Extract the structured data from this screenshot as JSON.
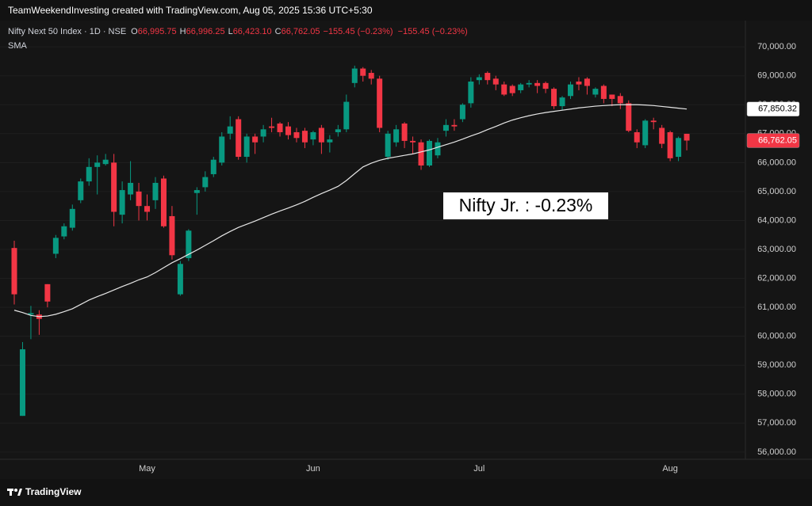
{
  "header": {
    "credit": "TeamWeekendInvesting created with TradingView.com, Aug 05, 2025 15:36 UTC+5:30"
  },
  "footer": {
    "brand": "TradingView"
  },
  "chart_data": {
    "type": "candlestick",
    "categories": [
      null,
      null,
      null,
      null,
      null,
      null,
      null,
      null,
      null,
      null,
      null,
      null,
      null,
      null,
      null,
      null,
      "May",
      null,
      null,
      null,
      null,
      null,
      null,
      null,
      null,
      null,
      null,
      null,
      null,
      null,
      null,
      null,
      null,
      null,
      null,
      null,
      "Jun",
      null,
      null,
      null,
      null,
      null,
      null,
      null,
      null,
      null,
      null,
      null,
      null,
      null,
      null,
      null,
      null,
      null,
      null,
      null,
      "Jul",
      null,
      null,
      null,
      null,
      null,
      null,
      null,
      null,
      null,
      null,
      null,
      null,
      null,
      null,
      null,
      null,
      null,
      null,
      null,
      null,
      null,
      null,
      "Aug",
      null,
      null
    ],
    "series": [
      {
        "name": "Nifty Next 50 Index · 1D · NSE",
        "up_color": "#089981",
        "down_color": "#f23645",
        "open": [
          63050,
          57250,
          60750,
          60750,
          61800,
          62850,
          63450,
          63750,
          64700,
          65350,
          65850,
          65950,
          66000,
          64200,
          64900,
          65000,
          64500,
          64700,
          65450,
          64150,
          61450,
          62700,
          64950,
          65150,
          65600,
          66000,
          67000,
          67500,
          66200,
          66900,
          66900,
          67250,
          67350,
          67250,
          67050,
          67100,
          66800,
          67200,
          66700,
          67050,
          67150,
          68750,
          69250,
          69100,
          68900,
          66200,
          66700,
          67350,
          66750,
          66700,
          65900,
          66250,
          67100,
          67300,
          67500,
          68050,
          68850,
          69100,
          68900,
          68700,
          68650,
          68500,
          68700,
          68750,
          68750,
          68550,
          67950,
          68300,
          68800,
          68900,
          68350,
          68650,
          68350,
          68300,
          68050,
          67050,
          66600,
          67450,
          67200,
          67050,
          66200,
          66995.75
        ],
        "high": [
          63300,
          59800,
          61050,
          60900,
          61800,
          63500,
          63900,
          64550,
          65450,
          66150,
          66250,
          66300,
          66300,
          65350,
          66050,
          65300,
          64900,
          65500,
          65550,
          64500,
          62600,
          63700,
          65150,
          65700,
          66200,
          67050,
          67600,
          67600,
          67000,
          67000,
          67300,
          67550,
          67400,
          67400,
          67200,
          67200,
          67100,
          67300,
          66950,
          67300,
          68350,
          69350,
          69300,
          69200,
          69000,
          67100,
          67300,
          67400,
          66900,
          66800,
          66800,
          66850,
          67500,
          67500,
          68050,
          68950,
          69050,
          69150,
          69000,
          68800,
          68700,
          68750,
          68850,
          68850,
          68800,
          68600,
          68300,
          68800,
          68950,
          68950,
          68600,
          68700,
          68350,
          68400,
          68150,
          67150,
          67500,
          67550,
          67300,
          67100,
          66900,
          66996.25
        ],
        "low": [
          61100,
          57250,
          59900,
          60050,
          61000,
          62700,
          63350,
          63650,
          64600,
          65200,
          64900,
          65900,
          63800,
          63900,
          64700,
          64000,
          64000,
          64400,
          63750,
          62650,
          61400,
          62600,
          64200,
          65000,
          65500,
          65900,
          66800,
          66100,
          66000,
          66300,
          66700,
          67050,
          66900,
          66800,
          66700,
          66500,
          66600,
          66300,
          66350,
          66900,
          67050,
          68600,
          68800,
          68700,
          67050,
          66100,
          66550,
          66500,
          66300,
          65750,
          65850,
          66150,
          66900,
          67100,
          67400,
          67900,
          68700,
          68700,
          68500,
          68300,
          68300,
          68400,
          68600,
          68400,
          68400,
          67850,
          67800,
          68200,
          68500,
          68350,
          68250,
          68050,
          67950,
          67850,
          67050,
          66500,
          66500,
          67150,
          66500,
          66050,
          66050,
          66423.1
        ],
        "close": [
          61450,
          59550,
          60800,
          60600,
          61200,
          63400,
          63800,
          64400,
          65350,
          65850,
          66000,
          66100,
          64300,
          65050,
          65300,
          64500,
          64300,
          65300,
          63800,
          62800,
          62500,
          63650,
          65050,
          65500,
          66100,
          66900,
          67250,
          66200,
          66900,
          66700,
          67150,
          67200,
          67050,
          66950,
          66850,
          66700,
          67050,
          66700,
          66800,
          67150,
          68100,
          69250,
          69000,
          68900,
          67200,
          67000,
          67150,
          66750,
          66700,
          65900,
          66750,
          66700,
          67300,
          67250,
          68000,
          68800,
          68950,
          68850,
          68700,
          68350,
          68400,
          68700,
          68750,
          68650,
          68550,
          67950,
          68250,
          68700,
          68700,
          68650,
          68550,
          68200,
          68200,
          68050,
          67100,
          66700,
          67450,
          67400,
          66650,
          66150,
          66850,
          66762.05
        ]
      },
      {
        "name": "SMA",
        "type": "line",
        "color": "#e6e6e6",
        "values": [
          60900,
          60820,
          60720,
          60680,
          60700,
          60760,
          60850,
          60950,
          61100,
          61250,
          61370,
          61480,
          61600,
          61720,
          61830,
          61950,
          62050,
          62200,
          62370,
          62540,
          62680,
          62830,
          62980,
          63140,
          63300,
          63470,
          63620,
          63760,
          63870,
          63980,
          64100,
          64220,
          64330,
          64430,
          64540,
          64660,
          64800,
          64930,
          65050,
          65180,
          65380,
          65620,
          65850,
          65980,
          66080,
          66150,
          66200,
          66250,
          66300,
          66370,
          66440,
          66530,
          66620,
          66710,
          66810,
          66920,
          67020,
          67140,
          67250,
          67370,
          67470,
          67550,
          67620,
          67680,
          67730,
          67770,
          67810,
          67850,
          67890,
          67920,
          67950,
          67970,
          67990,
          68000,
          68000,
          68000,
          67990,
          67970,
          67940,
          67910,
          67880,
          67850.32
        ]
      }
    ],
    "legend": {
      "ohlc": [
        {
          "key": "O",
          "text": "66,995.75"
        },
        {
          "key": "H",
          "text": "66,996.25"
        },
        {
          "key": "L",
          "text": "66,423.10"
        },
        {
          "key": "C",
          "text": "66,762.05"
        }
      ],
      "change": [
        "−155.45 (−0.23%)",
        "−155.45 (−0.23%)"
      ]
    },
    "annotation": "Nifty Jr. : -0.23%",
    "price_tags": [
      {
        "value": 67850.32,
        "label": "67,850.32",
        "color": "#ffffff"
      },
      {
        "value": 66762.05,
        "label": "66,762.05",
        "color": "#f23645"
      }
    ],
    "ylim": [
      55750,
      70250
    ],
    "yticks": [
      {
        "value": 56000,
        "label": "56,000.00"
      },
      {
        "value": 57000,
        "label": "57,000.00"
      },
      {
        "value": 58000,
        "label": "58,000.00"
      },
      {
        "value": 59000,
        "label": "59,000.00"
      },
      {
        "value": 60000,
        "label": "60,000.00"
      },
      {
        "value": 61000,
        "label": "61,000.00"
      },
      {
        "value": 62000,
        "label": "62,000.00"
      },
      {
        "value": 63000,
        "label": "63,000.00"
      },
      {
        "value": 64000,
        "label": "64,000.00"
      },
      {
        "value": 65000,
        "label": "65,000.00"
      },
      {
        "value": 66000,
        "label": "66,000.00"
      },
      {
        "value": 67000,
        "label": "67,000.00"
      },
      {
        "value": 68000,
        "label": "68,000.00"
      },
      {
        "value": 69000,
        "label": "69,000.00"
      },
      {
        "value": 70000,
        "label": "70,000.00"
      }
    ],
    "grid": true
  }
}
